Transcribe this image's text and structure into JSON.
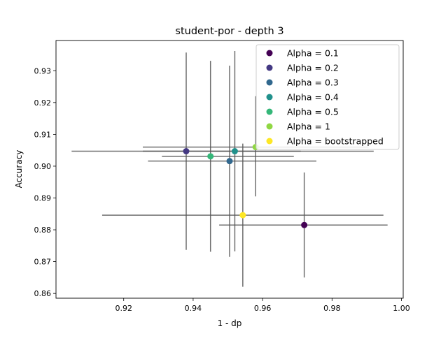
{
  "chart_data": {
    "type": "scatter",
    "title": "student-por - depth 3",
    "xlabel": "1 - dp",
    "ylabel": "Accuracy",
    "xlim": [
      0.9005,
      1.0005
    ],
    "ylim": [
      0.8585,
      0.9395
    ],
    "xticks": [
      0.92,
      0.94,
      0.96,
      0.98,
      1.0
    ],
    "xtick_labels": [
      "0.92",
      "0.94",
      "0.96",
      "0.98",
      "1.00"
    ],
    "yticks": [
      0.86,
      0.87,
      0.88,
      0.89,
      0.9,
      0.91,
      0.92,
      0.93
    ],
    "ytick_labels": [
      "0.86",
      "0.87",
      "0.88",
      "0.89",
      "0.90",
      "0.91",
      "0.92",
      "0.93"
    ],
    "grid": false,
    "legend_position": "top-right",
    "error_bar_color": "#555555",
    "series": [
      {
        "name": "Alpha = 0.1",
        "color": "#440154",
        "x": 0.972,
        "y": 0.8815,
        "xerr": [
          0.0245,
          0.024
        ],
        "yerr": [
          0.0165,
          0.0165
        ]
      },
      {
        "name": "Alpha = 0.2",
        "color": "#443983",
        "x": 0.938,
        "y": 0.9047,
        "xerr": [
          0.0125,
          0.033
        ],
        "yerr": [
          0.031,
          0.031
        ]
      },
      {
        "name": "Alpha = 0.3",
        "color": "#31688e",
        "x": 0.9505,
        "y": 0.9016,
        "xerr": [
          0.0235,
          0.025
        ],
        "yerr": [
          0.0301,
          0.03
        ]
      },
      {
        "name": "Alpha = 0.4",
        "color": "#21918c",
        "x": 0.952,
        "y": 0.9047,
        "xerr": [
          0.047,
          0.04
        ],
        "yerr": [
          0.0315,
          0.0315
        ]
      },
      {
        "name": "Alpha = 0.5",
        "color": "#35b779",
        "x": 0.945,
        "y": 0.9031,
        "xerr": [
          0.014,
          0.024
        ],
        "yerr": [
          0.03,
          0.03
        ]
      },
      {
        "name": "Alpha = 1",
        "color": "#90d743",
        "x": 0.958,
        "y": 0.906,
        "xerr": [
          0.0325,
          0.0325
        ],
        "yerr": [
          0.0155,
          0.016
        ]
      },
      {
        "name": "Alpha = bootstrapped",
        "color": "#fde725",
        "x": 0.9543,
        "y": 0.8846,
        "xerr": [
          0.0405,
          0.0405
        ],
        "yerr": [
          0.0225,
          0.0225
        ]
      }
    ]
  }
}
